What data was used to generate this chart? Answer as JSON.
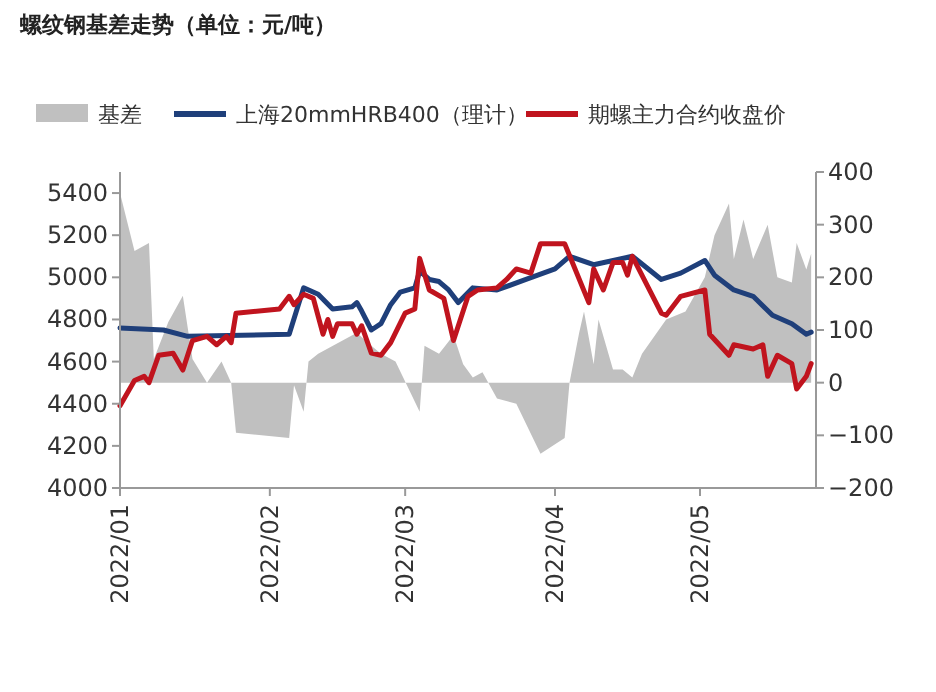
{
  "chart_data": {
    "type": "line",
    "title": "螺纹钢基差走势（单位：元/吨）",
    "legend": "top",
    "xlim": [
      "2022-01-01",
      "2022-05-25"
    ],
    "xticks": [
      {
        "value": "2022-01-01",
        "label": "2022/01"
      },
      {
        "value": "2022-02-01",
        "label": "2022/02"
      },
      {
        "value": "2022-03-01",
        "label": "2022/03"
      },
      {
        "value": "2022-04-01",
        "label": "2022/04"
      },
      {
        "value": "2022-05-01",
        "label": "2022/05"
      }
    ],
    "ylim": [
      4000,
      5500
    ],
    "yticks": [
      4000,
      4200,
      4400,
      4600,
      4800,
      5000,
      5200,
      5400
    ],
    "y2lim": [
      -200,
      400
    ],
    "y2ticks": [
      {
        "value": -200,
        "label": "−200"
      },
      {
        "value": -100,
        "label": "−100"
      },
      0,
      100,
      200,
      300,
      400
    ],
    "series": [
      {
        "name": "基差",
        "type": "area",
        "axis": "y2",
        "color": "#c0c0c0",
        "x": [
          "2022-01-01",
          "2022-01-04",
          "2022-01-07",
          "2022-01-08",
          "2022-01-11",
          "2022-01-14",
          "2022-01-16",
          "2022-01-19",
          "2022-01-22",
          "2022-01-24",
          "2022-01-25",
          "2022-02-05",
          "2022-02-06",
          "2022-02-08",
          "2022-02-09",
          "2022-02-11",
          "2022-02-17",
          "2022-02-19",
          "2022-02-22",
          "2022-02-24",
          "2022-02-27",
          "2022-03-04",
          "2022-03-05",
          "2022-03-08",
          "2022-03-11",
          "2022-03-13",
          "2022-03-15",
          "2022-03-17",
          "2022-03-20",
          "2022-03-24",
          "2022-03-29",
          "2022-04-03",
          "2022-04-04",
          "2022-04-06",
          "2022-04-07",
          "2022-04-09",
          "2022-04-10",
          "2022-04-13",
          "2022-04-15",
          "2022-04-17",
          "2022-04-19",
          "2022-04-24",
          "2022-04-28",
          "2022-05-02",
          "2022-05-04",
          "2022-05-07",
          "2022-05-08",
          "2022-05-10",
          "2022-05-12",
          "2022-05-15",
          "2022-05-17",
          "2022-05-20",
          "2022-05-21",
          "2022-05-23",
          "2022-05-24"
        ],
        "values": [
          360,
          250,
          265,
          45,
          115,
          165,
          45,
          0,
          40,
          0,
          -95,
          -105,
          -5,
          -55,
          40,
          55,
          85,
          95,
          70,
          55,
          40,
          -55,
          70,
          55,
          90,
          35,
          10,
          20,
          -30,
          -40,
          -135,
          -105,
          0,
          95,
          135,
          35,
          120,
          25,
          25,
          10,
          55,
          120,
          135,
          200,
          280,
          340,
          235,
          310,
          235,
          300,
          200,
          190,
          265,
          215,
          245
        ]
      },
      {
        "name": "上海20mmHRB400（理计）",
        "axis": "y",
        "color": "#1f3f7a",
        "x": [
          "2022-01-01",
          "2022-01-10",
          "2022-01-15",
          "2022-02-05",
          "2022-02-08",
          "2022-02-11",
          "2022-02-14",
          "2022-02-18",
          "2022-02-19",
          "2022-02-20",
          "2022-02-22",
          "2022-02-24",
          "2022-02-26",
          "2022-02-28",
          "2022-03-03",
          "2022-03-04",
          "2022-03-06",
          "2022-03-08",
          "2022-03-10",
          "2022-03-12",
          "2022-03-15",
          "2022-03-20",
          "2022-03-26",
          "2022-04-01",
          "2022-04-04",
          "2022-04-09",
          "2022-04-17",
          "2022-04-23",
          "2022-04-27",
          "2022-05-02",
          "2022-05-04",
          "2022-05-08",
          "2022-05-12",
          "2022-05-16",
          "2022-05-20",
          "2022-05-23",
          "2022-05-24"
        ],
        "values": [
          4760,
          4750,
          4720,
          4730,
          4950,
          4920,
          4850,
          4860,
          4880,
          4840,
          4750,
          4780,
          4870,
          4930,
          4950,
          5030,
          4990,
          4980,
          4940,
          4880,
          4950,
          4940,
          4990,
          5040,
          5100,
          5060,
          5100,
          4990,
          5020,
          5080,
          5010,
          4940,
          4910,
          4820,
          4780,
          4730,
          4740
        ]
      },
      {
        "name": "期螺主力合约收盘价",
        "axis": "y",
        "color": "#c0141e",
        "x": [
          "2022-01-01",
          "2022-01-04",
          "2022-01-06",
          "2022-01-07",
          "2022-01-09",
          "2022-01-12",
          "2022-01-14",
          "2022-01-16",
          "2022-01-19",
          "2022-01-21",
          "2022-01-23",
          "2022-01-24",
          "2022-01-25",
          "2022-02-03",
          "2022-02-05",
          "2022-02-06",
          "2022-02-08",
          "2022-02-10",
          "2022-02-12",
          "2022-02-13",
          "2022-02-14",
          "2022-02-15",
          "2022-02-18",
          "2022-02-19",
          "2022-02-20",
          "2022-02-22",
          "2022-02-24",
          "2022-02-26",
          "2022-03-01",
          "2022-03-03",
          "2022-03-04",
          "2022-03-06",
          "2022-03-09",
          "2022-03-11",
          "2022-03-14",
          "2022-03-16",
          "2022-03-20",
          "2022-03-22",
          "2022-03-24",
          "2022-03-27",
          "2022-03-29",
          "2022-04-03",
          "2022-04-08",
          "2022-04-09",
          "2022-04-11",
          "2022-04-13",
          "2022-04-15",
          "2022-04-16",
          "2022-04-17",
          "2022-04-23",
          "2022-04-24",
          "2022-04-27",
          "2022-05-02",
          "2022-05-03",
          "2022-05-07",
          "2022-05-08",
          "2022-05-12",
          "2022-05-14",
          "2022-05-15",
          "2022-05-17",
          "2022-05-20",
          "2022-05-21",
          "2022-05-23",
          "2022-05-24"
        ],
        "values": [
          4390,
          4510,
          4530,
          4500,
          4630,
          4640,
          4560,
          4700,
          4720,
          4680,
          4720,
          4690,
          4830,
          4850,
          4910,
          4870,
          4920,
          4900,
          4730,
          4800,
          4720,
          4780,
          4780,
          4730,
          4770,
          4640,
          4630,
          4690,
          4830,
          4850,
          5090,
          4940,
          4900,
          4700,
          4910,
          4940,
          4950,
          4990,
          5040,
          5020,
          5160,
          5160,
          4880,
          5040,
          4940,
          5070,
          5070,
          5010,
          5100,
          4830,
          4820,
          4910,
          4940,
          4730,
          4630,
          4680,
          4660,
          4680,
          4530,
          4630,
          4590,
          4470,
          4530,
          4590
        ]
      }
    ]
  }
}
